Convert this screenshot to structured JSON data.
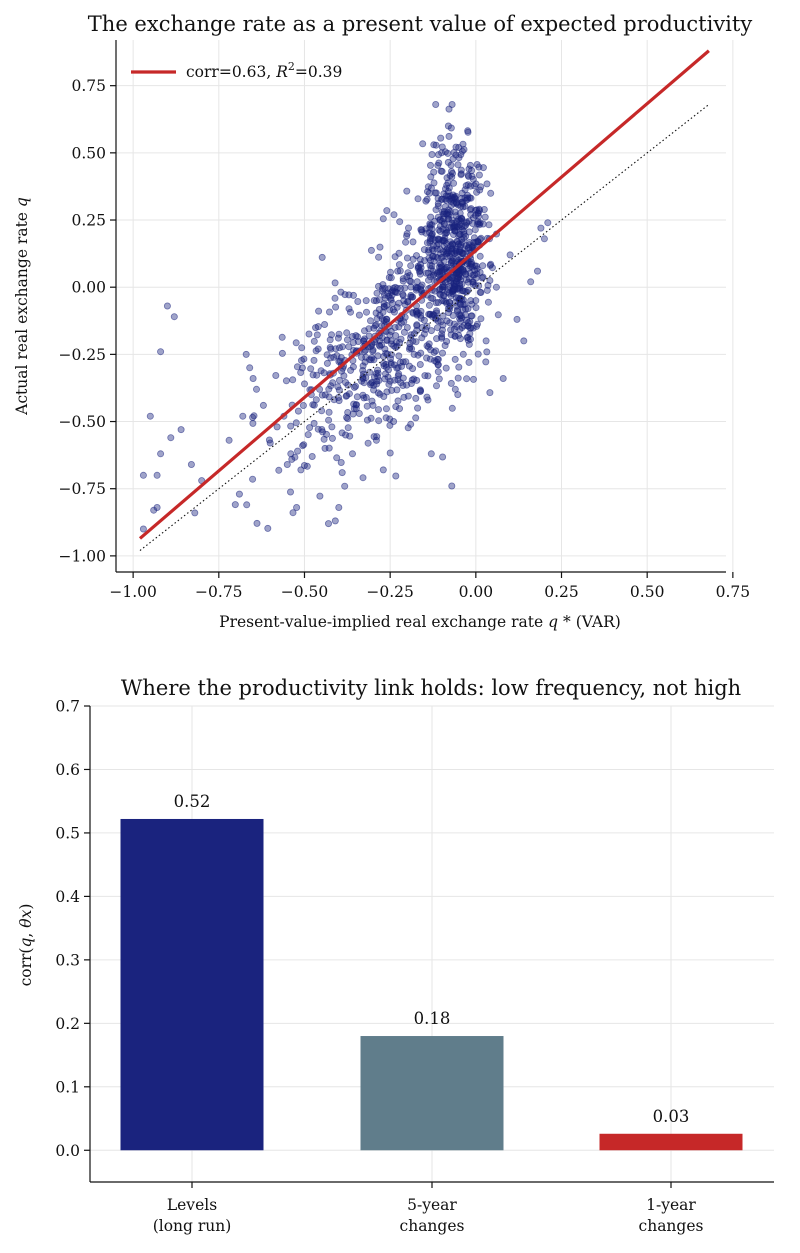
{
  "chart_data": [
    {
      "type": "scatter",
      "title": "The exchange rate as a present value of expected productivity",
      "xlabel": "Present-value-implied real exchange rate",
      "xlabel_symbol": "q *",
      "xlabel_suffix": "(VAR)",
      "ylabel": "Actual real exchange rate",
      "ylabel_symbol": "q",
      "xlim": [
        -1.05,
        0.73
      ],
      "ylim": [
        -1.06,
        0.92
      ],
      "xticks": [
        -1.0,
        -0.75,
        -0.5,
        -0.25,
        0.0,
        0.25,
        0.5,
        0.75
      ],
      "xtick_labels": [
        "−1.00",
        "−0.75",
        "−0.50",
        "−0.25",
        "0.00",
        "0.25",
        "0.50",
        "0.75"
      ],
      "yticks": [
        -1.0,
        -0.75,
        -0.5,
        -0.25,
        0.0,
        0.25,
        0.5,
        0.75
      ],
      "ytick_labels": [
        "−1.00",
        "−0.75",
        "−0.50",
        "−0.25",
        "0.00",
        "0.25",
        "0.50",
        "0.75"
      ],
      "grid": true,
      "legend_position": "top-left",
      "point_color": "#1a237e",
      "fit_color": "#c62828",
      "fit_line": {
        "label": "corr=0.63, ",
        "label_r2": "R",
        "label_r2_exp": "2",
        "label_r2_value": "=0.39",
        "x": [
          -0.98,
          0.68
        ],
        "y": [
          -0.935,
          0.88
        ]
      },
      "identity_line": {
        "x": [
          -0.98,
          0.68
        ],
        "y": [
          -0.98,
          0.68
        ]
      },
      "points": [
        [
          -0.97,
          -0.9
        ],
        [
          -0.97,
          -0.7
        ],
        [
          -0.95,
          -0.48
        ],
        [
          -0.94,
          -0.83
        ],
        [
          -0.93,
          -0.82
        ],
        [
          -0.93,
          -0.7
        ],
        [
          -0.92,
          -0.62
        ],
        [
          -0.92,
          -0.24
        ],
        [
          -0.9,
          -0.07
        ],
        [
          -0.89,
          -0.56
        ],
        [
          -0.88,
          -0.11
        ],
        [
          -0.86,
          -0.53
        ],
        [
          -0.83,
          -0.66
        ],
        [
          -0.82,
          -0.84
        ],
        [
          -0.8,
          -0.72
        ],
        [
          -0.72,
          -0.57
        ],
        [
          -0.69,
          -0.77
        ],
        [
          -0.68,
          -0.48
        ],
        [
          -0.67,
          -0.25
        ],
        [
          -0.66,
          -0.3
        ],
        [
          -0.65,
          -0.34
        ],
        [
          -0.64,
          -0.38
        ],
        [
          -0.62,
          -0.44
        ],
        [
          -0.6,
          -0.58
        ],
        [
          -0.58,
          -0.52
        ],
        [
          -0.56,
          -0.48
        ],
        [
          -0.55,
          -0.66
        ],
        [
          -0.54,
          -0.62
        ],
        [
          -0.52,
          -0.61
        ],
        [
          -0.5,
          -0.36
        ],
        [
          -0.48,
          -0.4
        ],
        [
          -0.46,
          -0.23
        ],
        [
          -0.45,
          -0.46
        ],
        [
          -0.44,
          -0.6
        ],
        [
          -0.43,
          -0.88
        ],
        [
          -0.42,
          -0.52
        ],
        [
          -0.41,
          -0.87
        ],
        [
          -0.4,
          -0.82
        ],
        [
          -0.39,
          -0.69
        ],
        [
          -0.38,
          -0.55
        ],
        [
          -0.37,
          -0.08
        ],
        [
          -0.36,
          -0.62
        ],
        [
          -0.35,
          -0.18
        ],
        [
          -0.34,
          -0.47
        ],
        [
          -0.33,
          -0.31
        ],
        [
          -0.32,
          -0.05
        ],
        [
          -0.31,
          -0.27
        ],
        [
          -0.3,
          -0.44
        ],
        [
          -0.29,
          -0.57
        ],
        [
          -0.28,
          -0.22
        ],
        [
          -0.27,
          -0.68
        ],
        [
          -0.26,
          -0.12
        ],
        [
          -0.25,
          -0.35
        ],
        [
          -0.24,
          -0.5
        ],
        [
          -0.23,
          -0.02
        ],
        [
          -0.22,
          -0.28
        ],
        [
          -0.21,
          -0.41
        ],
        [
          -0.2,
          -0.15
        ],
        [
          -0.19,
          0.08
        ],
        [
          -0.18,
          -0.25
        ],
        [
          -0.17,
          -0.45
        ],
        [
          -0.16,
          -0.09
        ],
        [
          -0.15,
          0.14
        ],
        [
          -0.14,
          -0.33
        ],
        [
          -0.13,
          -0.62
        ],
        [
          -0.12,
          0.02
        ],
        [
          -0.11,
          0.33
        ],
        [
          -0.1,
          -0.19
        ],
        [
          -0.1,
          0.5
        ],
        [
          -0.09,
          0.2
        ],
        [
          -0.08,
          -0.08
        ],
        [
          -0.08,
          0.6
        ],
        [
          -0.07,
          0.41
        ],
        [
          -0.07,
          -0.74
        ],
        [
          -0.06,
          0.28
        ],
        [
          -0.06,
          -0.38
        ],
        [
          -0.05,
          0.1
        ],
        [
          -0.05,
          0.52
        ],
        [
          -0.04,
          -0.15
        ],
        [
          -0.04,
          0.35
        ],
        [
          -0.03,
          0.05
        ],
        [
          -0.03,
          0.23
        ],
        [
          -0.02,
          -0.28
        ],
        [
          -0.02,
          0.44
        ],
        [
          -0.01,
          0.15
        ],
        [
          0.0,
          -0.05
        ],
        [
          0.01,
          0.29
        ],
        [
          0.02,
          0.08
        ],
        [
          0.03,
          -0.2
        ],
        [
          0.04,
          0.18
        ],
        [
          0.06,
          0.0
        ],
        [
          0.08,
          -0.34
        ],
        [
          0.1,
          0.12
        ],
        [
          0.12,
          -0.12
        ],
        [
          0.14,
          -0.2
        ],
        [
          0.16,
          0.02
        ],
        [
          0.18,
          0.06
        ],
        [
          0.19,
          0.22
        ],
        [
          0.2,
          0.18
        ],
        [
          0.21,
          0.24
        ]
      ],
      "point_count": 1200
    },
    {
      "type": "bar",
      "title": "Where the productivity link holds: low frequency, not high",
      "categories": [
        [
          "Levels",
          "(long run)"
        ],
        [
          "5-year",
          "changes"
        ],
        [
          "1-year",
          "changes"
        ]
      ],
      "values": [
        0.52,
        0.18,
        0.03
      ],
      "bar_values_shown": [
        0.522,
        0.18,
        0.026
      ],
      "value_labels": [
        "0.52",
        "0.18",
        "0.03"
      ],
      "colors": [
        "#1a237e",
        "#607d8b",
        "#c62828"
      ],
      "xlabel": "",
      "ylabel": "corr(",
      "ylabel_q": "q",
      "ylabel_sep": ", ",
      "ylabel_theta": "θx",
      "ylabel_close": ")",
      "ylim": [
        -0.05,
        0.7
      ],
      "yticks": [
        0.0,
        0.1,
        0.2,
        0.3,
        0.4,
        0.5,
        0.6,
        0.7
      ],
      "ytick_labels": [
        "0.0",
        "0.1",
        "0.2",
        "0.3",
        "0.4",
        "0.5",
        "0.6",
        "0.7"
      ],
      "grid": true
    }
  ]
}
